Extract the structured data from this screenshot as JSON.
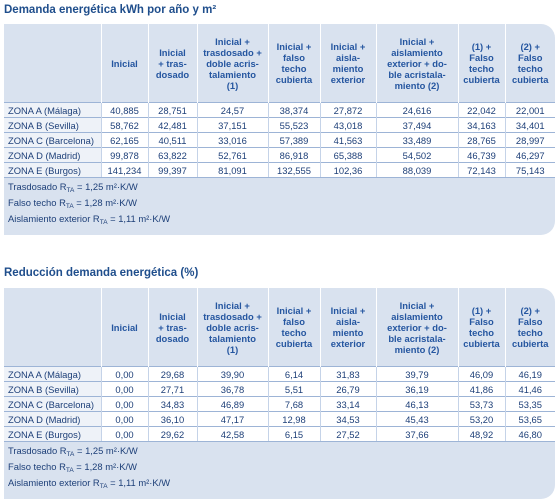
{
  "tables": [
    {
      "title": "Demanda energética kWh por año y m²",
      "headers": [
        [
          "Inicial"
        ],
        [
          "Inicial",
          "+ tras-",
          "dosado"
        ],
        [
          "Inicial +",
          "trasdosado +",
          "doble acris-",
          "talamiento",
          "(1)"
        ],
        [
          "Inicial +",
          "falso",
          "techo",
          "cubierta"
        ],
        [
          "Inicial +",
          "aisla-",
          "miento",
          "exterior"
        ],
        [
          "Inicial +",
          "aislamiento",
          "exterior + do-",
          "ble acristala-",
          "miento (2)"
        ],
        [
          "(1) +",
          "Falso",
          "techo",
          "cubierta"
        ],
        [
          "(2) +",
          "Falso",
          "techo",
          "cubierta"
        ]
      ],
      "rows": [
        [
          "ZONA A (Málaga)",
          "40,885",
          "28,751",
          "24,57",
          "38,374",
          "27,872",
          "24,616",
          "22,042",
          "22,001"
        ],
        [
          "ZONA B (Sevilla)",
          "58,762",
          "42,481",
          "37,151",
          "55,523",
          "43,018",
          "37,494",
          "34,163",
          "34,401"
        ],
        [
          "ZONA C (Barcelona)",
          "62,165",
          "40,511",
          "33,016",
          "57,389",
          "41,563",
          "33,489",
          "28,765",
          "28,997"
        ],
        [
          "ZONA D (Madrid)",
          "99,878",
          "63,822",
          "52,761",
          "86,918",
          "65,388",
          "54,502",
          "46,739",
          "46,297"
        ],
        [
          "ZONA E (Burgos)",
          "141,234",
          "99,397",
          "81,091",
          "132,555",
          "102,36",
          "88,039",
          "72,143",
          "75,143"
        ]
      ],
      "notes": [
        {
          "pre": "Trasdosado R",
          "sub": "TA",
          "post": "= 1,25 m²·K/W"
        },
        {
          "pre": "Falso techo R",
          "sub": "TA",
          "post": "= 1,28 m²·K/W"
        },
        {
          "pre": "Aislamiento exterior R",
          "sub": "TA",
          "post": "= 1,11 m²·K/W"
        }
      ]
    },
    {
      "title": "Reducción demanda energética (%)",
      "headers": [
        [
          "Inicial"
        ],
        [
          "Inicial",
          "+ tras-",
          "dosado"
        ],
        [
          "Inicial +",
          "trasdosado +",
          "doble acris-",
          "talamiento",
          "(1)"
        ],
        [
          "Inicial +",
          "falso",
          "techo",
          "cubierta"
        ],
        [
          "Inicial +",
          "aisla-",
          "miento",
          "exterior"
        ],
        [
          "Inicial +",
          "aislamiento",
          "exterior + do-",
          "ble acristala-",
          "miento (2)"
        ],
        [
          "(1) +",
          "Falso",
          "techo",
          "cubierta"
        ],
        [
          "(2) +",
          "Falso",
          "techo",
          "cubierta"
        ]
      ],
      "rows": [
        [
          "ZONA A (Málaga)",
          "0,00",
          "29,68",
          "39,90",
          "6,14",
          "31,83",
          "39,79",
          "46,09",
          "46,19"
        ],
        [
          "ZONA B (Sevilla)",
          "0,00",
          "27,71",
          "36,78",
          "5,51",
          "26,79",
          "36,19",
          "41,86",
          "41,46"
        ],
        [
          "ZONA C (Barcelona)",
          "0,00",
          "34,83",
          "46,89",
          "7,68",
          "33,14",
          "46,13",
          "53,73",
          "53,35"
        ],
        [
          "ZONA D (Madrid)",
          "0,00",
          "36,10",
          "47,17",
          "12,98",
          "34,53",
          "45,43",
          "53,20",
          "53,65"
        ],
        [
          "ZONA E (Burgos)",
          "0,00",
          "29,62",
          "42,58",
          "6,15",
          "27,52",
          "37,66",
          "48,92",
          "46,80"
        ]
      ],
      "notes": [
        {
          "pre": "Trasdosado R",
          "sub": "TA",
          "post": "= 1,25 m²·K/W"
        },
        {
          "pre": "Falso techo R",
          "sub": "TA",
          "post": "= 1,28 m²·K/W"
        },
        {
          "pre": "Aislamiento exterior R",
          "sub": "TA",
          "post": "= 1,11 m²·K/W"
        }
      ]
    }
  ]
}
